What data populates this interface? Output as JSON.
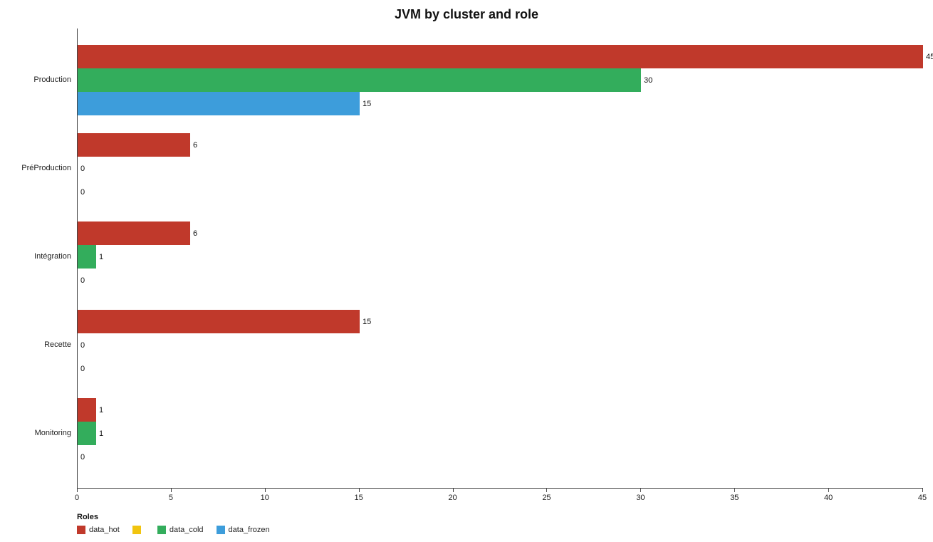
{
  "title": "JVM by cluster and role",
  "chart_data": {
    "type": "bar",
    "orientation": "horizontal",
    "title": "JVM by cluster and role",
    "xlabel": "",
    "ylabel": "",
    "xlim": [
      0,
      45
    ],
    "xticks": [
      0,
      5,
      10,
      15,
      20,
      25,
      30,
      35,
      40,
      45
    ],
    "grid": false,
    "categories": [
      "Production",
      "PréProduction",
      "Intégration",
      "Recette",
      "Monitoring"
    ],
    "series": [
      {
        "name": "data_hot",
        "color": "#c0392b",
        "values": [
          45,
          6,
          6,
          15,
          1
        ]
      },
      {
        "name": "data_cold",
        "color": "#33ad5c",
        "values": [
          30,
          0,
          1,
          0,
          1
        ]
      },
      {
        "name": "data_frozen",
        "color": "#3d9ddb",
        "values": [
          15,
          0,
          0,
          0,
          0
        ]
      }
    ],
    "legend": {
      "position": "bottom-left",
      "title": "Roles",
      "entries": [
        {
          "label": "data_hot",
          "color": "#c0392b"
        },
        {
          "label": "",
          "color": "#f1c40f"
        },
        {
          "label": "data_cold",
          "color": "#33ad5c"
        },
        {
          "label": "data_frozen",
          "color": "#3d9ddb"
        }
      ]
    }
  }
}
